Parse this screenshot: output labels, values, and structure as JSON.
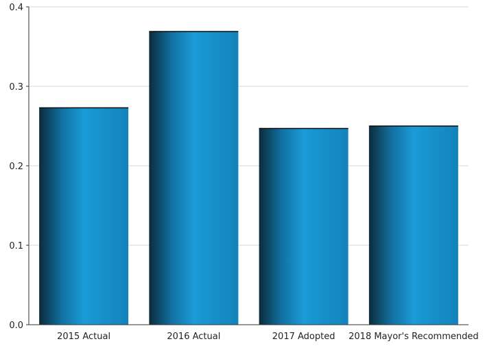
{
  "chart_data": {
    "type": "bar",
    "categories": [
      "2015 Actual",
      "2016 Actual",
      "2017 Adopted",
      "2018 Mayor's Recommended"
    ],
    "values": [
      0.273,
      0.369,
      0.247,
      0.25
    ],
    "ylim": [
      0,
      0.4
    ],
    "yticks": [
      "0.0",
      "0.1",
      "0.2",
      "0.3",
      "0.4"
    ],
    "title": "",
    "xlabel": "",
    "ylabel": "",
    "grid": true,
    "legend": "none",
    "colors": {
      "bar_dark": "#0b2c3c",
      "bar_mid": "#1388c0",
      "bar_light": "#1a9bd7",
      "bar_edge": "#0a0a0a",
      "gridline": "#d9d9d9",
      "axis": "#333333"
    }
  }
}
